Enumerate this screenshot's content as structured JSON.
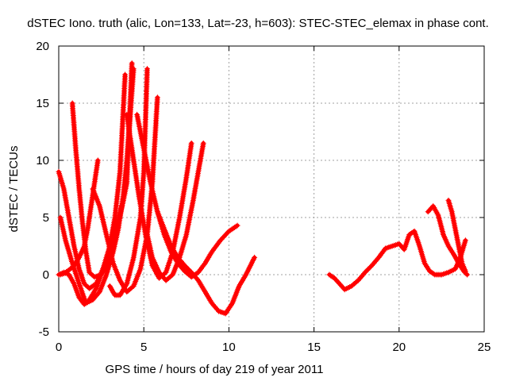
{
  "chart_data": {
    "type": "scatter",
    "title": "dSTEC Iono. truth (alic, Lon=133, Lat=-23, h=603): STEC-STEC_elemax in phase cont.",
    "xlabel": "GPS time / hours of day 219 of year 2011",
    "ylabel": "dSTEC  / TECUs",
    "xlim": [
      0,
      25
    ],
    "ylim": [
      -5,
      20
    ],
    "xticks": [
      0,
      5,
      10,
      15,
      20,
      25
    ],
    "yticks": [
      -5,
      0,
      5,
      10,
      15,
      20
    ],
    "xtick_labels": [
      "0",
      "5",
      "10",
      "15",
      "20",
      "25"
    ],
    "ytick_labels": [
      "-5",
      "0",
      "5",
      "10",
      "15",
      "20"
    ],
    "grid": true,
    "marker": "+",
    "color": "#ff0000",
    "series": [
      {
        "x": [
          0.0,
          0.3,
          0.6,
          0.9,
          1.2,
          1.5,
          1.8,
          2.2,
          2.6,
          3.0,
          3.4,
          3.8,
          4.0,
          4.3
        ],
        "y": [
          9.0,
          7.5,
          5.0,
          2.5,
          0.5,
          -0.8,
          -1.2,
          -0.8,
          0.5,
          2.0,
          4.0,
          6.5,
          8.0,
          18.5
        ]
      },
      {
        "x": [
          0.1,
          0.4,
          0.8,
          1.2,
          1.6,
          2.0,
          2.4,
          2.8,
          3.2,
          3.5,
          3.8,
          4.0,
          4.2,
          4.4
        ],
        "y": [
          5.0,
          3.0,
          1.0,
          -0.8,
          -2.5,
          -2.2,
          -1.5,
          0.0,
          2.0,
          4.0,
          7.0,
          10.0,
          14.0,
          18.0
        ]
      },
      {
        "x": [
          0.0,
          0.3,
          0.6,
          0.9,
          1.2,
          1.5,
          1.8,
          2.2,
          2.6,
          3.0,
          3.3,
          3.6,
          3.9
        ],
        "y": [
          0.0,
          0.2,
          0.0,
          -0.8,
          -2.0,
          -2.6,
          -2.2,
          -1.2,
          0.5,
          2.5,
          5.0,
          9.0,
          17.5
        ]
      },
      {
        "x": [
          0.8,
          1.0,
          1.2,
          1.4,
          1.6,
          1.8,
          2.1,
          2.5,
          2.9,
          3.2,
          3.5,
          3.7
        ],
        "y": [
          15.0,
          11.0,
          7.5,
          4.5,
          2.0,
          0.2,
          -0.2,
          0.0,
          1.0,
          2.5,
          4.5,
          6.0
        ]
      },
      {
        "x": [
          2.3,
          2.1,
          1.9,
          1.7,
          1.5,
          1.2,
          0.9,
          0.6,
          0.3,
          0.1
        ],
        "y": [
          10.0,
          8.0,
          6.0,
          4.0,
          2.5,
          1.5,
          0.8,
          0.4,
          0.1,
          0.0
        ]
      },
      {
        "x": [
          2.0,
          2.4,
          2.8,
          3.2,
          3.6,
          4.0,
          4.4,
          4.8,
          5.2,
          5.5,
          5.8
        ],
        "y": [
          7.5,
          6.0,
          3.5,
          1.0,
          -0.5,
          -1.5,
          -1.0,
          0.5,
          3.5,
          8.0,
          15.5
        ]
      },
      {
        "x": [
          3.0,
          3.3,
          3.6,
          4.0,
          4.4,
          4.8,
          5.0,
          5.2
        ],
        "y": [
          -1.0,
          -1.8,
          -1.8,
          -0.8,
          1.5,
          5.0,
          9.0,
          18.0
        ]
      },
      {
        "x": [
          4.0,
          4.3,
          4.7,
          5.1,
          5.5,
          5.9,
          6.3,
          6.7,
          7.1,
          7.5,
          7.8
        ],
        "y": [
          14.0,
          11.0,
          7.0,
          3.5,
          0.8,
          -0.3,
          0.2,
          2.0,
          5.0,
          8.5,
          11.5
        ]
      },
      {
        "x": [
          5.2,
          5.5,
          5.9,
          6.3,
          6.7,
          7.1,
          7.5,
          7.9,
          8.2,
          8.5
        ],
        "y": [
          3.5,
          1.5,
          0.2,
          -0.5,
          0.0,
          1.5,
          3.5,
          6.5,
          9.0,
          11.5
        ]
      },
      {
        "x": [
          4.6,
          5.0,
          5.4,
          5.8,
          6.2,
          6.6,
          7.0,
          7.4,
          7.8,
          8.2,
          8.6,
          9.0,
          9.5,
          10.0,
          10.5
        ],
        "y": [
          14.0,
          11.0,
          8.0,
          5.5,
          3.5,
          2.0,
          1.0,
          0.3,
          -0.2,
          0.2,
          1.0,
          2.0,
          3.0,
          3.8,
          4.3
        ]
      },
      {
        "x": [
          5.8,
          6.2,
          6.6,
          7.0,
          7.4,
          7.8,
          8.2,
          8.6,
          9.0,
          9.4,
          9.8,
          10.2,
          10.6,
          11.0,
          11.5
        ],
        "y": [
          5.5,
          4.0,
          2.5,
          1.5,
          0.8,
          0.2,
          -0.5,
          -1.5,
          -2.5,
          -3.2,
          -3.4,
          -2.5,
          -1.0,
          0.0,
          1.5
        ]
      },
      {
        "x": [
          15.9,
          16.2,
          16.5,
          16.8,
          17.2,
          17.6,
          18.0,
          18.4,
          18.8,
          19.2,
          19.6,
          20.0,
          20.3,
          20.6,
          20.9,
          21.2,
          21.5,
          21.8,
          22.1,
          22.5,
          22.9,
          23.3,
          23.6,
          23.9
        ],
        "y": [
          0.0,
          -0.3,
          -0.8,
          -1.3,
          -1.0,
          -0.5,
          0.2,
          0.8,
          1.5,
          2.3,
          2.5,
          2.7,
          2.2,
          3.5,
          3.8,
          2.5,
          1.0,
          0.3,
          0.0,
          0.0,
          0.2,
          0.5,
          1.5,
          3.0
        ]
      },
      {
        "x": [
          21.7,
          22.0,
          22.3,
          22.6,
          22.9,
          23.2,
          23.5,
          23.8,
          24.0
        ],
        "y": [
          5.5,
          6.0,
          5.2,
          3.5,
          2.5,
          1.8,
          1.0,
          0.3,
          0.0
        ]
      },
      {
        "x": [
          22.9,
          23.1,
          23.3,
          23.5,
          23.7,
          23.9
        ],
        "y": [
          6.5,
          5.5,
          4.0,
          2.5,
          1.0,
          0.3
        ]
      }
    ]
  }
}
